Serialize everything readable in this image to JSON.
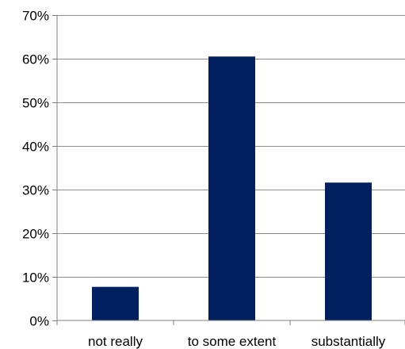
{
  "chart_data": {
    "type": "bar",
    "categories": [
      "not really",
      "to some extent",
      "substantially"
    ],
    "values": [
      7.7,
      60.5,
      31.6
    ],
    "ylim": [
      0,
      70
    ],
    "y_ticks": [
      "0%",
      "10%",
      "20%",
      "30%",
      "40%",
      "50%",
      "60%",
      "70%"
    ],
    "grid": true,
    "legend": "none",
    "bar_color": "#002060"
  }
}
